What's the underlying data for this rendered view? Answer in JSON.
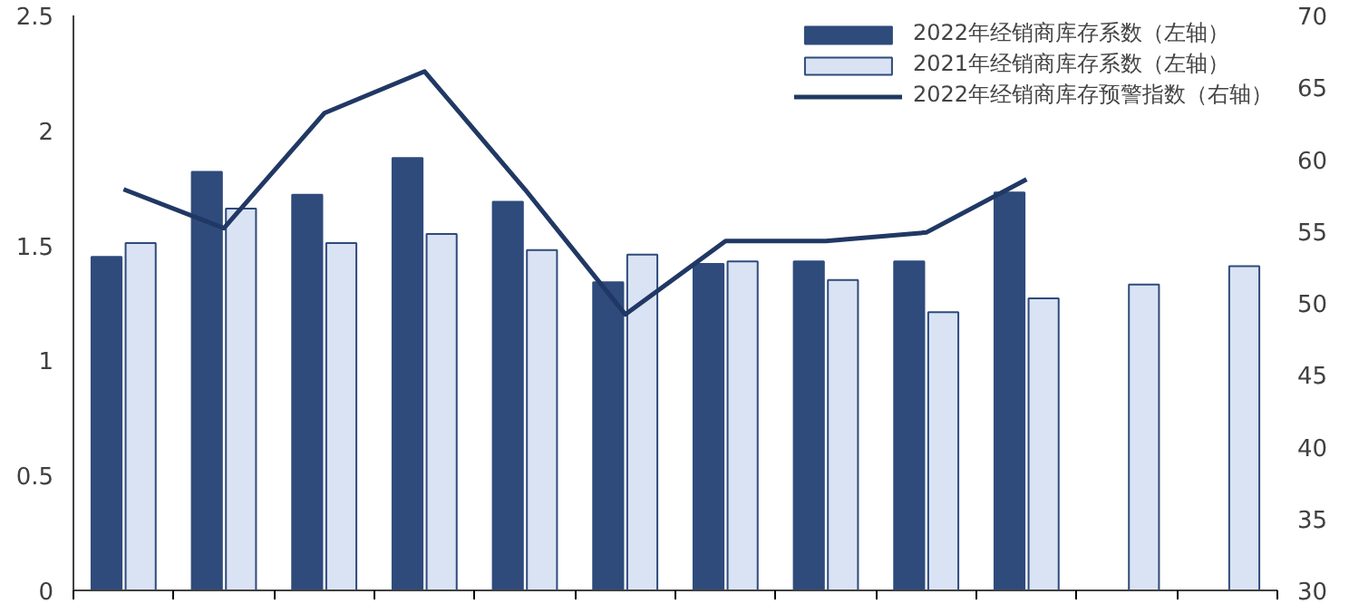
{
  "chart_data": {
    "type": "bar",
    "categories": [
      null,
      null,
      null,
      null,
      null,
      null,
      null,
      null,
      null,
      null,
      null,
      null
    ],
    "series": [
      {
        "name": "2022年经销商库存系数（左轴）",
        "color": "#2f4b7c",
        "values": [
          1.45,
          1.82,
          1.72,
          1.88,
          1.69,
          1.34,
          1.42,
          1.43,
          1.43,
          1.73,
          null,
          null
        ]
      },
      {
        "name": "2021年经销商库存系数（左轴）",
        "color": "#dae3f3",
        "values": [
          1.51,
          1.66,
          1.51,
          1.55,
          1.48,
          1.46,
          1.43,
          1.35,
          1.21,
          1.27,
          1.33,
          1.41
        ]
      },
      {
        "name": "2022年经销商库存预警指数（右轴）",
        "type": "line",
        "axis": "y2",
        "color": "#203864",
        "values": [
          57.9,
          55.2,
          63.2,
          66.1,
          57.9,
          49.2,
          54.3,
          54.3,
          54.9,
          58.6,
          null,
          null
        ]
      }
    ],
    "ylim": [
      0,
      2.5
    ],
    "yticks": [
      0,
      0.5,
      1,
      1.5,
      2,
      2.5
    ],
    "y2lim": [
      30,
      70
    ],
    "y2ticks": [
      30,
      35,
      40,
      45,
      50,
      55,
      60,
      65,
      70
    ],
    "legend": "top right",
    "grid": false,
    "tick_labels": "y"
  }
}
